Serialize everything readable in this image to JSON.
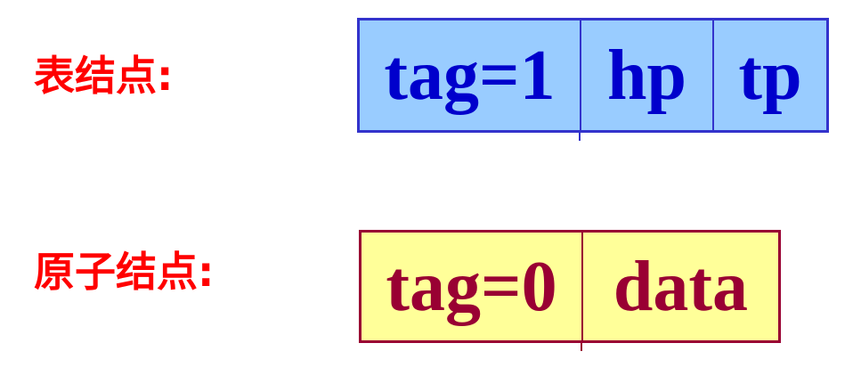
{
  "list_node": {
    "label": "表结点:",
    "fields": {
      "tag": "tag=1",
      "hp": "hp",
      "tp": "tp"
    }
  },
  "atom_node": {
    "label": "原子结点:",
    "fields": {
      "tag": "tag=0",
      "data": "data"
    }
  },
  "colors": {
    "label_text": "#ff0000",
    "list_fill": "#99ccff",
    "list_border": "#3333cc",
    "list_text": "#0000cc",
    "atom_fill": "#ffff99",
    "atom_border": "#990033",
    "atom_text": "#990033"
  }
}
